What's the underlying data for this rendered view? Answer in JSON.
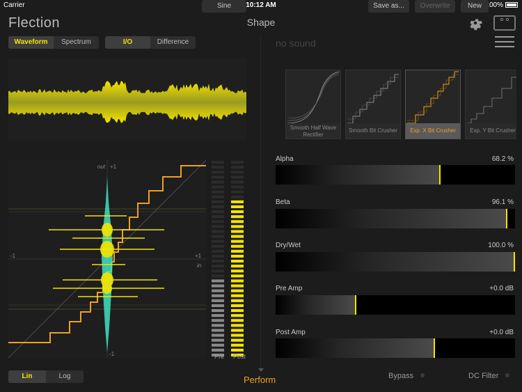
{
  "status_bar": {
    "carrier": "Carrier",
    "time": "10:12 AM",
    "battery": "100%"
  },
  "app": {
    "logo": "Flection",
    "title": "Shape"
  },
  "view_tabs": [
    {
      "label": "Waveform",
      "selected": true
    },
    {
      "label": "Spectrum",
      "selected": false
    }
  ],
  "mode_tabs": [
    {
      "label": "I/O",
      "selected": true
    },
    {
      "label": "Difference",
      "selected": false
    }
  ],
  "sine_button": "Sine",
  "sound_name": "no sound",
  "actions": {
    "save_as": "Save as...",
    "overwrite": "Overwrite",
    "new": "New"
  },
  "io_plot": {
    "out_label": "out",
    "plus_one_top": "+1",
    "minus_one_left": "-1",
    "plus_one_right": "+1",
    "in_label": "in",
    "minus_one_bottom": "-1"
  },
  "meters": {
    "pre_label": "Pre",
    "post_label": "Post",
    "pre_level": 0.4,
    "post_level": 0.8
  },
  "presets": [
    {
      "name": "Smooth Half Wave Rectifier",
      "icon": "smooth-curve-icon",
      "selected": false
    },
    {
      "name": "Smooth Bit Crusher",
      "icon": "stairs-icon",
      "selected": false
    },
    {
      "name": "Exp. X Bit Crusher",
      "icon": "stairs-icon",
      "selected": true
    },
    {
      "name": "Exp. Y Bit Crusher",
      "icon": "stairs-icon",
      "selected": false
    }
  ],
  "params": [
    {
      "label": "Alpha",
      "value": "68.2 %",
      "level": 0.682
    },
    {
      "label": "Beta",
      "value": "96.1 %",
      "level": 0.961
    },
    {
      "label": "Dry/Wet",
      "value": "100.0 %",
      "level": 1.0
    },
    {
      "label": "Pre Amp",
      "value": "+0.0 dB",
      "level": 0.33
    },
    {
      "label": "Post Amp",
      "value": "+0.0 dB",
      "level": 0.66
    }
  ],
  "scale_tabs": [
    {
      "label": "Lin",
      "selected": true
    },
    {
      "label": "Log",
      "selected": false
    }
  ],
  "bottom": {
    "perform": "Perform",
    "bypass": "Bypass",
    "dc_filter": "DC Filter"
  },
  "colors": {
    "accent_yellow": "#f5e400",
    "accent_orange": "#f0a020",
    "cyan": "#40e0c0"
  }
}
